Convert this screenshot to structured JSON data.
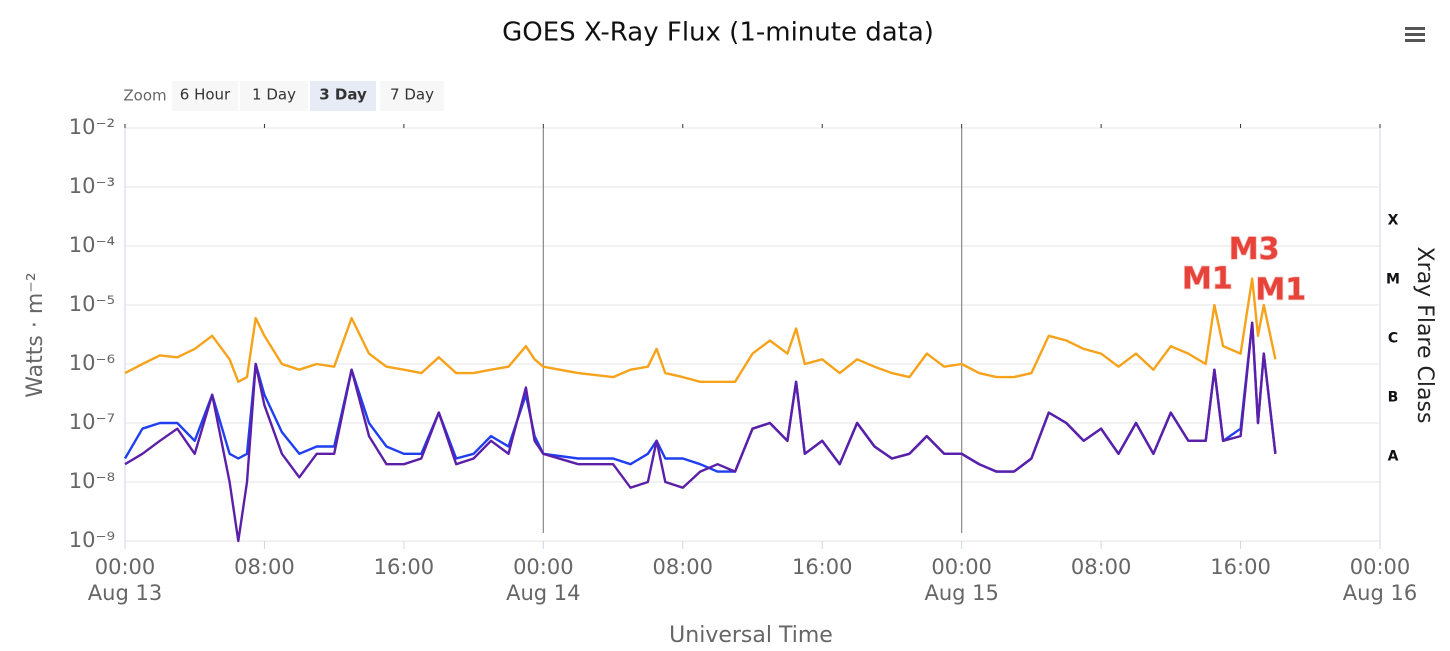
{
  "chart_data": {
    "type": "line",
    "title": "GOES X-Ray Flux (1-minute data)",
    "x_label": "Universal Time",
    "y_label": "Watts · m⁻²",
    "y2_label": "Xray Flare Class",
    "log_y": true,
    "grid": true,
    "ylim": [
      1e-09,
      0.01
    ],
    "yticks": [
      {
        "value": 1e-09,
        "label": "10⁻⁹"
      },
      {
        "value": 1e-08,
        "label": "10⁻⁸"
      },
      {
        "value": 1e-07,
        "label": "10⁻⁷"
      },
      {
        "value": 1e-06,
        "label": "10⁻⁶"
      },
      {
        "value": 1e-05,
        "label": "10⁻⁵"
      },
      {
        "value": 0.0001,
        "label": "10⁻⁴"
      },
      {
        "value": 0.001,
        "label": "10⁻³"
      },
      {
        "value": 0.01,
        "label": "10⁻²"
      }
    ],
    "flare_classes": [
      {
        "value": 1e-08,
        "label": "A"
      },
      {
        "value": 1e-07,
        "label": "B"
      },
      {
        "value": 1e-06,
        "label": "C"
      },
      {
        "value": 1e-05,
        "label": "M"
      },
      {
        "value": 0.0001,
        "label": "X"
      }
    ],
    "xlim": [
      "Aug 13 00:00",
      "Aug 16 00:00"
    ],
    "xticks": [
      {
        "value": "Aug 13 00:00",
        "label": "00:00"
      },
      {
        "value": "Aug 13 08:00",
        "label": "08:00"
      },
      {
        "value": "Aug 13 16:00",
        "label": "16:00"
      },
      {
        "value": "Aug 14 00:00",
        "label": "00:00"
      },
      {
        "value": "Aug 14 08:00",
        "label": "08:00"
      },
      {
        "value": "Aug 14 16:00",
        "label": "16:00"
      },
      {
        "value": "Aug 15 00:00",
        "label": "00:00"
      },
      {
        "value": "Aug 15 08:00",
        "label": "08:00"
      },
      {
        "value": "Aug 15 16:00",
        "label": "16:00"
      },
      {
        "value": "Aug 16 00:00",
        "label": "00:00"
      }
    ],
    "x_date_labels": [
      {
        "value": "Aug 13 00:00",
        "label": "Aug 13"
      },
      {
        "value": "Aug 14 00:00",
        "label": "Aug 14"
      },
      {
        "value": "Aug 15 00:00",
        "label": "Aug 15"
      },
      {
        "value": "Aug 16 00:00",
        "label": "Aug 16"
      }
    ],
    "x": [
      "Aug 13 00:00",
      "Aug 13 01:00",
      "Aug 13 02:00",
      "Aug 13 03:00",
      "Aug 13 04:00",
      "Aug 13 05:00",
      "Aug 13 06:00",
      "Aug 13 06:30",
      "Aug 13 07:00",
      "Aug 13 07:30",
      "Aug 13 08:00",
      "Aug 13 09:00",
      "Aug 13 10:00",
      "Aug 13 11:00",
      "Aug 13 12:00",
      "Aug 13 13:00",
      "Aug 13 14:00",
      "Aug 13 15:00",
      "Aug 13 16:00",
      "Aug 13 17:00",
      "Aug 13 18:00",
      "Aug 13 19:00",
      "Aug 13 20:00",
      "Aug 13 21:00",
      "Aug 13 22:00",
      "Aug 13 23:00",
      "Aug 13 23:30",
      "Aug 14 00:00",
      "Aug 14 02:00",
      "Aug 14 04:00",
      "Aug 14 05:00",
      "Aug 14 06:00",
      "Aug 14 06:30",
      "Aug 14 07:00",
      "Aug 14 08:00",
      "Aug 14 09:00",
      "Aug 14 10:00",
      "Aug 14 11:00",
      "Aug 14 12:00",
      "Aug 14 13:00",
      "Aug 14 14:00",
      "Aug 14 14:30",
      "Aug 14 15:00",
      "Aug 14 16:00",
      "Aug 14 17:00",
      "Aug 14 18:00",
      "Aug 14 19:00",
      "Aug 14 20:00",
      "Aug 14 21:00",
      "Aug 14 22:00",
      "Aug 14 23:00",
      "Aug 15 00:00",
      "Aug 15 01:00",
      "Aug 15 02:00",
      "Aug 15 03:00",
      "Aug 15 04:00",
      "Aug 15 05:00",
      "Aug 15 06:00",
      "Aug 15 07:00",
      "Aug 15 08:00",
      "Aug 15 09:00",
      "Aug 15 10:00",
      "Aug 15 11:00",
      "Aug 15 12:00",
      "Aug 15 13:00",
      "Aug 15 14:00",
      "Aug 15 14:30",
      "Aug 15 15:00",
      "Aug 15 16:00",
      "Aug 15 16:40",
      "Aug 15 17:00",
      "Aug 15 17:20",
      "Aug 15 18:00"
    ],
    "series": [
      {
        "color": "#f7a21b",
        "values": [
          7e-07,
          1e-06,
          1.4e-06,
          1.3e-06,
          1.8e-06,
          3e-06,
          1.2e-06,
          5e-07,
          6e-07,
          6e-06,
          3e-06,
          1e-06,
          8e-07,
          1e-06,
          9e-07,
          6e-06,
          1.5e-06,
          9e-07,
          8e-07,
          7e-07,
          1.3e-06,
          7e-07,
          7e-07,
          8e-07,
          9e-07,
          2e-06,
          1.2e-06,
          9e-07,
          7e-07,
          6e-07,
          8e-07,
          9e-07,
          1.8e-06,
          7e-07,
          6e-07,
          5e-07,
          5e-07,
          5e-07,
          1.5e-06,
          2.5e-06,
          1.5e-06,
          4e-06,
          1e-06,
          1.2e-06,
          7e-07,
          1.2e-06,
          9e-07,
          7e-07,
          6e-07,
          1.5e-06,
          9e-07,
          1e-06,
          7e-07,
          6e-07,
          6e-07,
          7e-07,
          3e-06,
          2.5e-06,
          1.8e-06,
          1.5e-06,
          9e-07,
          1.5e-06,
          8e-07,
          2e-06,
          1.5e-06,
          1e-06,
          1e-05,
          2e-06,
          1.5e-06,
          2.8e-05,
          3e-06,
          1e-05,
          1.2e-06
        ]
      },
      {
        "color": "#1f3ff0",
        "values": [
          2.5e-08,
          8e-08,
          1e-07,
          1e-07,
          5e-08,
          3e-07,
          3e-08,
          2.5e-08,
          3e-08,
          1e-06,
          3e-07,
          7e-08,
          3e-08,
          4e-08,
          4e-08,
          8e-07,
          1e-07,
          4e-08,
          3e-08,
          3e-08,
          1.5e-07,
          2.5e-08,
          3e-08,
          6e-08,
          4e-08,
          3e-07,
          6e-08,
          3e-08,
          2.5e-08,
          2.5e-08,
          2e-08,
          3e-08,
          5e-08,
          2.5e-08,
          2.5e-08,
          2e-08,
          1.5e-08,
          1.5e-08,
          8e-08,
          1e-07,
          5e-08,
          5e-07,
          3e-08,
          5e-08,
          2e-08,
          1e-07,
          4e-08,
          2.5e-08,
          3e-08,
          6e-08,
          3e-08,
          3e-08,
          2e-08,
          1.5e-08,
          1.5e-08,
          2.5e-08,
          1.5e-07,
          1e-07,
          5e-08,
          8e-08,
          3e-08,
          1e-07,
          3e-08,
          1.5e-07,
          5e-08,
          5e-08,
          8e-07,
          5e-08,
          8e-08,
          5e-06,
          1e-07,
          1.5e-06,
          3e-08
        ]
      },
      {
        "color": "#5b1fa8",
        "values": [
          2e-08,
          3e-08,
          5e-08,
          8e-08,
          3e-08,
          3e-07,
          1e-08,
          1e-09,
          1e-08,
          1e-06,
          2e-07,
          3e-08,
          1.2e-08,
          3e-08,
          3e-08,
          8e-07,
          6e-08,
          2e-08,
          2e-08,
          2.5e-08,
          1.5e-07,
          2e-08,
          2.5e-08,
          5e-08,
          3e-08,
          4e-07,
          5e-08,
          3e-08,
          2e-08,
          2e-08,
          8e-09,
          1e-08,
          5e-08,
          1e-08,
          8e-09,
          1.5e-08,
          2e-08,
          1.5e-08,
          8e-08,
          1e-07,
          5e-08,
          5e-07,
          3e-08,
          5e-08,
          2e-08,
          1e-07,
          4e-08,
          2.5e-08,
          3e-08,
          6e-08,
          3e-08,
          3e-08,
          2e-08,
          1.5e-08,
          1.5e-08,
          2.5e-08,
          1.5e-07,
          1e-07,
          5e-08,
          8e-08,
          3e-08,
          1e-07,
          3e-08,
          1.5e-07,
          5e-08,
          5e-08,
          8e-07,
          5e-08,
          6e-08,
          5e-06,
          1e-07,
          1.5e-06,
          3e-08
        ]
      }
    ],
    "annotations": [
      {
        "label": "M1",
        "x": "Aug 15 14:30",
        "y": 1e-05
      },
      {
        "label": "M3",
        "x": "Aug 15 16:40",
        "y": 2.8e-05
      },
      {
        "label": "M1",
        "x": "Aug 15 17:20",
        "y": 1e-05
      }
    ]
  },
  "zoom": {
    "label": "Zoom",
    "buttons": [
      "6 Hour",
      "1 Day",
      "3 Day",
      "7 Day"
    ],
    "selected": 2
  }
}
